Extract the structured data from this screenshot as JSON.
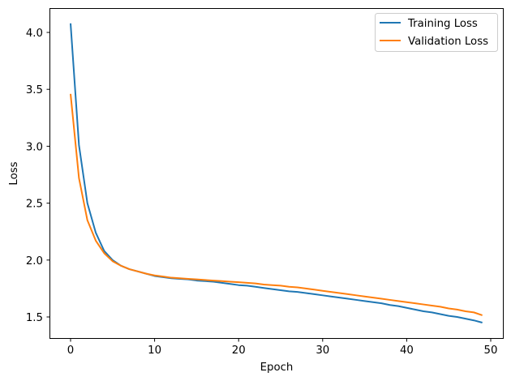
{
  "chart_data": {
    "type": "line",
    "title": "",
    "xlabel": "Epoch",
    "ylabel": "Loss",
    "xlim": [
      -2.45,
      51.45
    ],
    "ylim": [
      1.31,
      4.21
    ],
    "xticks": [
      0,
      10,
      20,
      30,
      40,
      50
    ],
    "yticks": [
      1.5,
      2.0,
      2.5,
      3.0,
      3.5,
      4.0
    ],
    "ytick_labels": [
      "1.5",
      "2.0",
      "2.5",
      "3.0",
      "3.5",
      "4.0"
    ],
    "grid": false,
    "legend_position": "upper right",
    "x": [
      0,
      1,
      2,
      3,
      4,
      5,
      6,
      7,
      8,
      9,
      10,
      11,
      12,
      13,
      14,
      15,
      16,
      17,
      18,
      19,
      20,
      21,
      22,
      23,
      24,
      25,
      26,
      27,
      28,
      29,
      30,
      31,
      32,
      33,
      34,
      35,
      36,
      37,
      38,
      39,
      40,
      41,
      42,
      43,
      44,
      45,
      46,
      47,
      48,
      49
    ],
    "series": [
      {
        "name": "Training Loss",
        "color": "#1f77b4",
        "values": [
          4.08,
          3.01,
          2.5,
          2.24,
          2.08,
          2.0,
          1.95,
          1.92,
          1.9,
          1.88,
          1.86,
          1.85,
          1.84,
          1.835,
          1.83,
          1.82,
          1.815,
          1.81,
          1.8,
          1.79,
          1.78,
          1.775,
          1.765,
          1.755,
          1.745,
          1.735,
          1.725,
          1.72,
          1.71,
          1.7,
          1.69,
          1.68,
          1.67,
          1.66,
          1.65,
          1.64,
          1.63,
          1.62,
          1.605,
          1.595,
          1.58,
          1.565,
          1.55,
          1.54,
          1.525,
          1.51,
          1.5,
          1.485,
          1.47,
          1.45
        ]
      },
      {
        "name": "Validation Loss",
        "color": "#ff7f0e",
        "values": [
          3.46,
          2.72,
          2.35,
          2.17,
          2.06,
          1.99,
          1.95,
          1.92,
          1.9,
          1.88,
          1.865,
          1.855,
          1.845,
          1.84,
          1.835,
          1.83,
          1.825,
          1.82,
          1.815,
          1.81,
          1.805,
          1.8,
          1.795,
          1.785,
          1.78,
          1.775,
          1.765,
          1.76,
          1.75,
          1.74,
          1.73,
          1.72,
          1.71,
          1.7,
          1.69,
          1.68,
          1.67,
          1.66,
          1.65,
          1.64,
          1.63,
          1.62,
          1.61,
          1.6,
          1.59,
          1.575,
          1.565,
          1.55,
          1.54,
          1.515
        ]
      }
    ]
  },
  "legend": {
    "items": [
      {
        "label": "Training Loss",
        "color": "#1f77b4"
      },
      {
        "label": "Validation Loss",
        "color": "#ff7f0e"
      }
    ]
  },
  "axes": {
    "xlabel": "Epoch",
    "ylabel": "Loss",
    "xtick_labels": [
      "0",
      "10",
      "20",
      "30",
      "40",
      "50"
    ],
    "ytick_labels": [
      "1.5",
      "2.0",
      "2.5",
      "3.0",
      "3.5",
      "4.0"
    ]
  }
}
